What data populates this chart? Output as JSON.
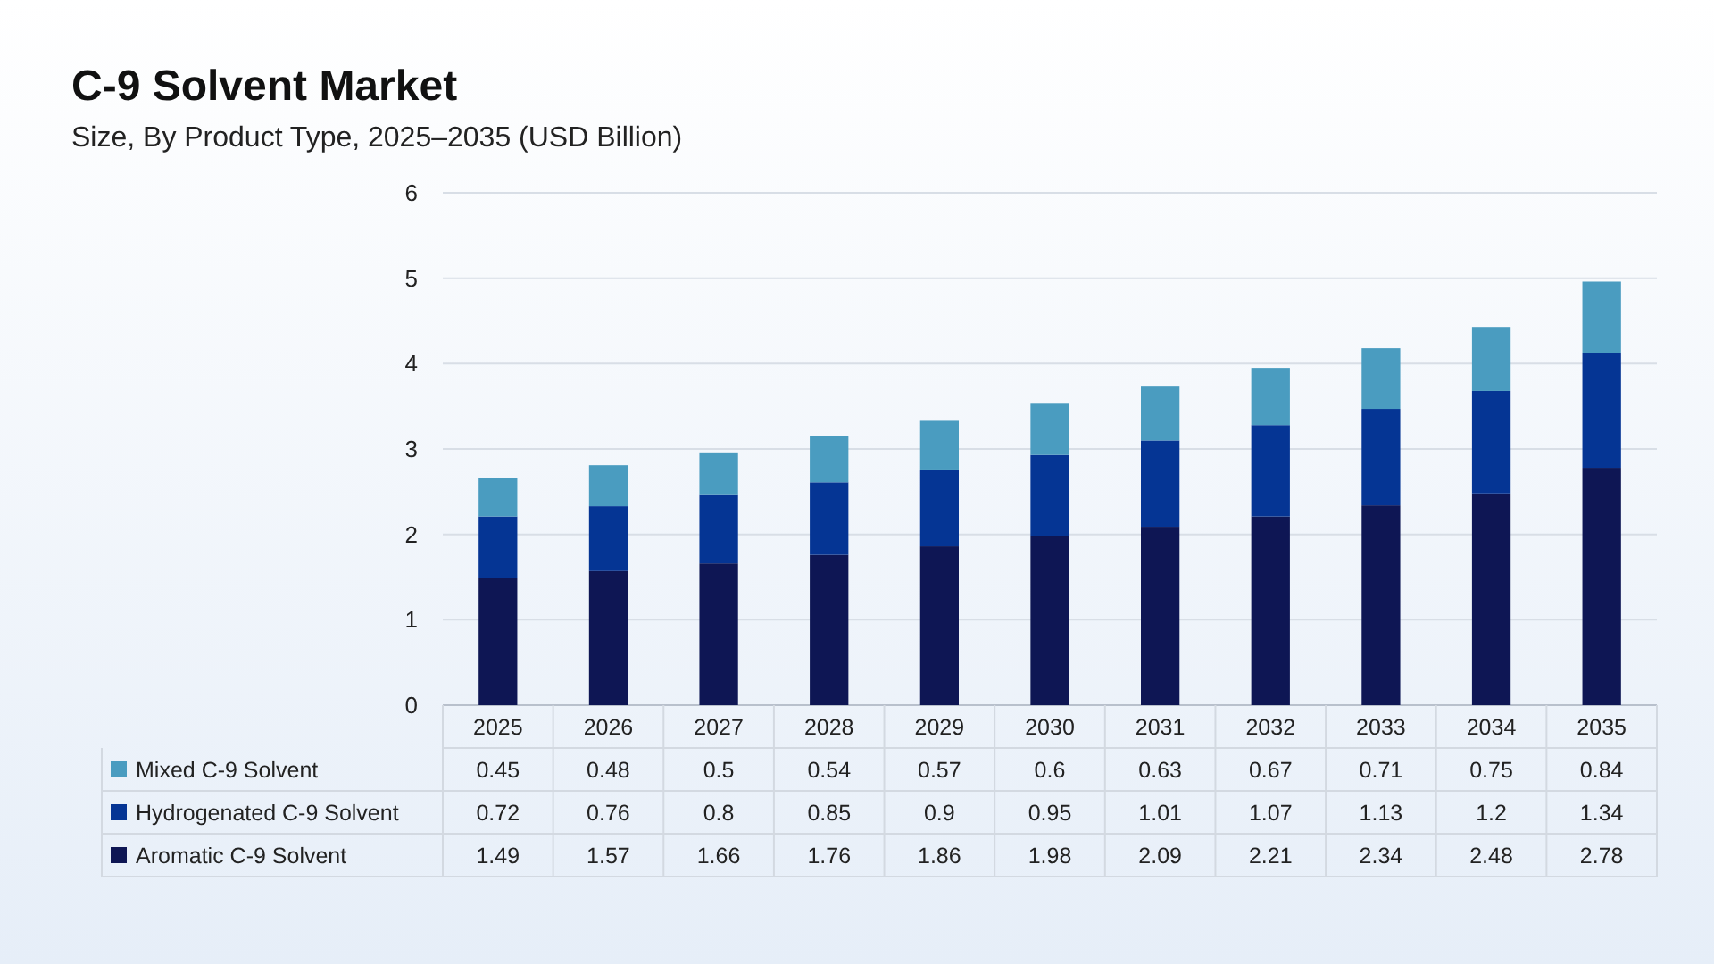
{
  "chart_data": {
    "type": "bar",
    "title": "C-9 Solvent Market",
    "subtitle": "Size, By Product Type, 2025–2035 (USD Billion)",
    "categories": [
      "2025",
      "2026",
      "2027",
      "2028",
      "2029",
      "2030",
      "2031",
      "2032",
      "2033",
      "2034",
      "2035"
    ],
    "stacked": true,
    "series": [
      {
        "name": "Aromatic C-9 Solvent",
        "color": "#0e1654",
        "values": [
          1.49,
          1.57,
          1.66,
          1.76,
          1.86,
          1.98,
          2.09,
          2.21,
          2.34,
          2.48,
          2.78
        ]
      },
      {
        "name": "Hydrogenated C-9 Solvent",
        "color": "#053594",
        "values": [
          0.72,
          0.76,
          0.8,
          0.85,
          0.9,
          0.95,
          1.01,
          1.07,
          1.13,
          1.2,
          1.34
        ]
      },
      {
        "name": "Mixed C-9 Solvent",
        "color": "#4a9cc0",
        "values": [
          0.45,
          0.48,
          0.5,
          0.54,
          0.57,
          0.6,
          0.63,
          0.67,
          0.71,
          0.75,
          0.84
        ]
      }
    ],
    "ylim": [
      0,
      6
    ],
    "yticks": [
      0,
      1,
      2,
      3,
      4,
      5,
      6
    ],
    "grid": "y",
    "legend": "bottom",
    "data_labels": true
  }
}
